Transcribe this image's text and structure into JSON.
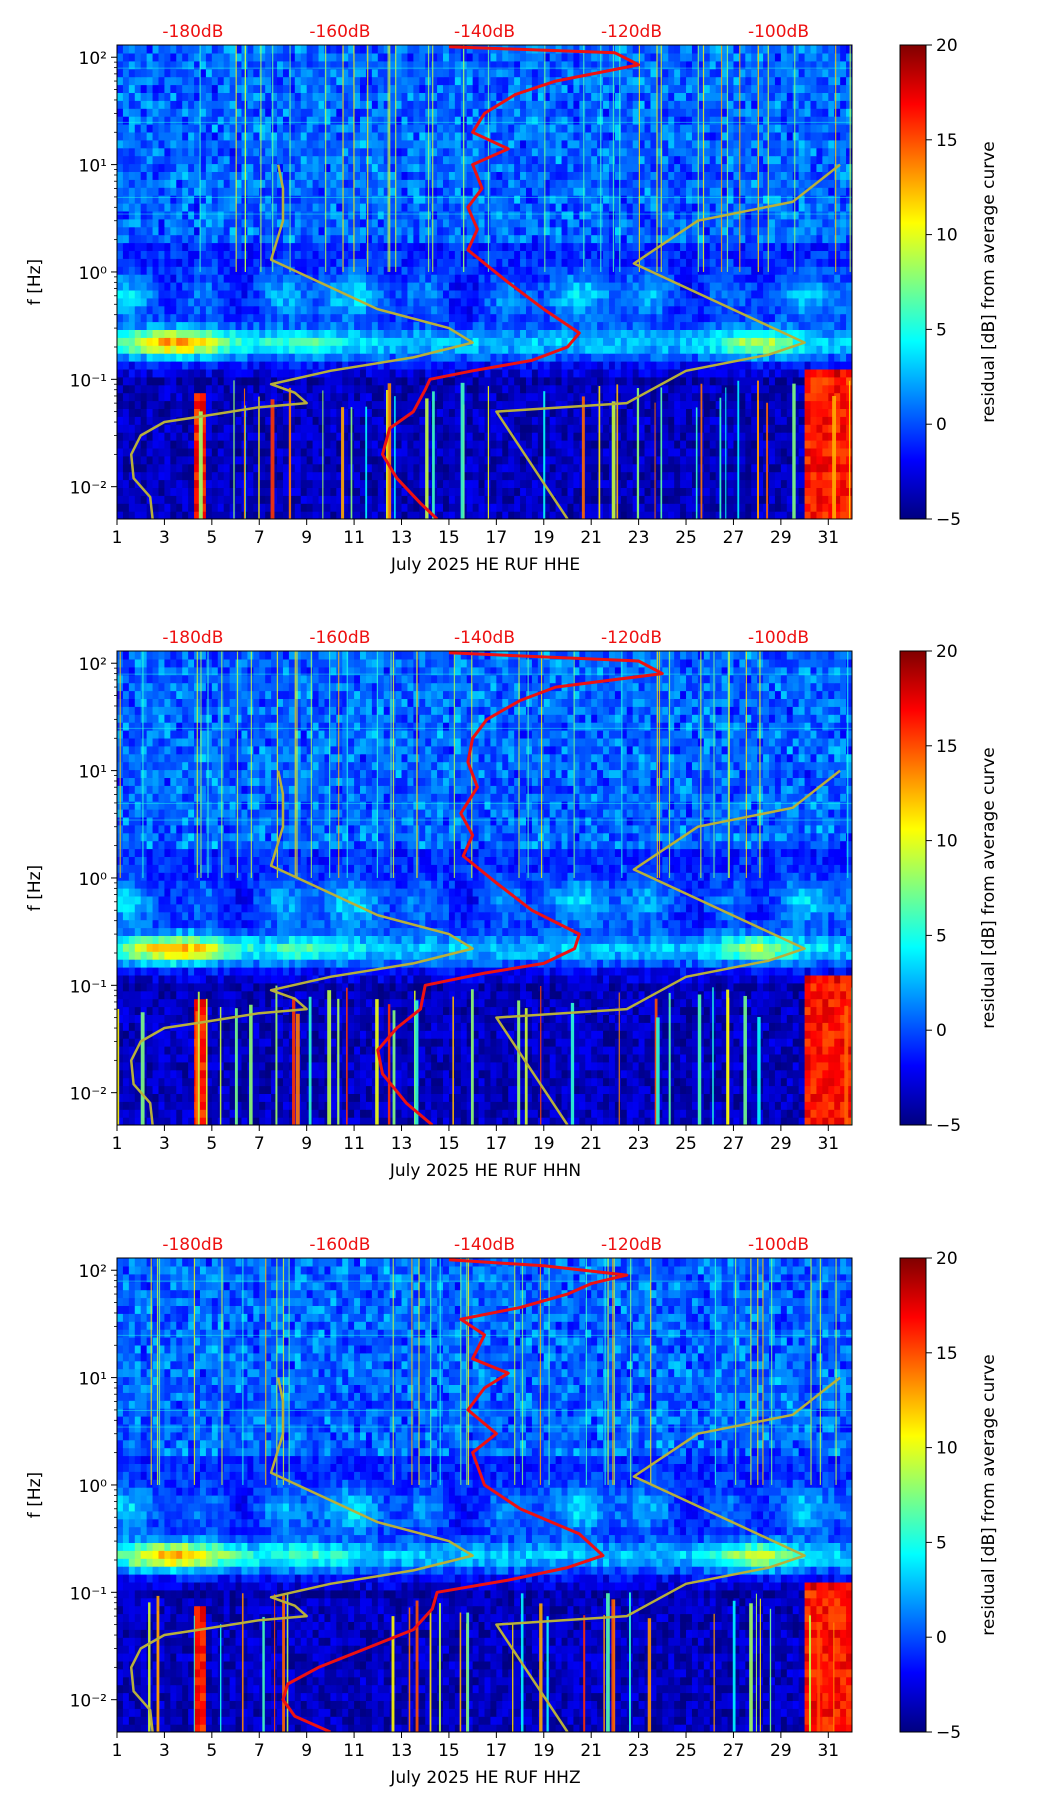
{
  "colors": {
    "noise_curve": "#ee1111",
    "model_curve": "#b8b03a",
    "top_label": "#ee1111",
    "axis": "#000000"
  },
  "colormap": [
    "#000080",
    "#0000ff",
    "#0080ff",
    "#00ffff",
    "#80ff80",
    "#ffff00",
    "#ff8000",
    "#ff0000",
    "#800000"
  ],
  "chart_data": [
    {
      "type": "heatmap",
      "title": "",
      "xlabel": "July 2025 HE RUF  HHE",
      "ylabel": "f [Hz]",
      "xlim": [
        1,
        32
      ],
      "ylim": [
        0.005,
        130
      ],
      "yscale": "log",
      "xticks": [
        1,
        3,
        5,
        7,
        9,
        11,
        13,
        15,
        17,
        19,
        21,
        23,
        25,
        27,
        29,
        31
      ],
      "yticks": [
        {
          "value": 0.01,
          "label": "10⁻²"
        },
        {
          "value": 0.1,
          "label": "10⁻¹"
        },
        {
          "value": 1,
          "label": "10⁰"
        },
        {
          "value": 10,
          "label": "10¹"
        },
        {
          "value": 100,
          "label": "10²"
        }
      ],
      "top_axis": {
        "labels": [
          "-180dB",
          "-160dB",
          "-140dB",
          "-120dB",
          "-100dB"
        ],
        "positions_day": [
          4.2,
          10.4,
          16.5,
          22.7,
          28.9
        ]
      },
      "colorbar": {
        "label": "residual [dB] from average curve",
        "min": -5,
        "max": 20,
        "ticks": [
          -5,
          0,
          5,
          10,
          15,
          20
        ]
      },
      "series": [
        {
          "name": "noise-model-curve",
          "points": [
            [
              2.5,
              0.005
            ],
            [
              2.4,
              0.008
            ],
            [
              1.7,
              0.012
            ],
            [
              1.6,
              0.02
            ],
            [
              2.0,
              0.03
            ],
            [
              3.0,
              0.04
            ],
            [
              4.5,
              0.045
            ],
            [
              7.0,
              0.055
            ],
            [
              9.0,
              0.06
            ],
            [
              8.5,
              0.075
            ],
            [
              7.5,
              0.09
            ],
            [
              10.0,
              0.12
            ],
            [
              13.5,
              0.16
            ],
            [
              16.0,
              0.22
            ],
            [
              15.0,
              0.3
            ],
            [
              12.0,
              0.45
            ],
            [
              7.5,
              1.3
            ],
            [
              8.0,
              3
            ],
            [
              8.0,
              6
            ],
            [
              7.8,
              10
            ]
          ]
        },
        {
          "name": "model-curve-right",
          "points": [
            [
              20.0,
              0.005
            ],
            [
              17.0,
              0.05
            ],
            [
              22.5,
              0.06
            ],
            [
              25.0,
              0.12
            ],
            [
              28.5,
              0.17
            ],
            [
              30.0,
              0.22
            ],
            [
              22.8,
              1.2
            ],
            [
              25.5,
              3
            ],
            [
              29.5,
              4.5
            ],
            [
              31.5,
              10
            ]
          ]
        },
        {
          "name": "mean-spectrum",
          "points": [
            [
              14.5,
              0.005
            ],
            [
              13.8,
              0.007
            ],
            [
              12.8,
              0.012
            ],
            [
              12.2,
              0.02
            ],
            [
              12.5,
              0.035
            ],
            [
              13.5,
              0.05
            ],
            [
              14.0,
              0.08
            ],
            [
              14.2,
              0.1
            ],
            [
              16.0,
              0.12
            ],
            [
              18.5,
              0.15
            ],
            [
              20.0,
              0.2
            ],
            [
              20.5,
              0.27
            ],
            [
              19.0,
              0.45
            ],
            [
              17.5,
              0.8
            ],
            [
              15.8,
              1.6
            ],
            [
              16.2,
              2.5
            ],
            [
              15.8,
              4
            ],
            [
              16.4,
              6
            ],
            [
              16.0,
              10
            ],
            [
              17.5,
              14
            ],
            [
              16.0,
              20
            ],
            [
              16.5,
              30
            ],
            [
              17.8,
              45
            ],
            [
              19.5,
              60
            ],
            [
              23.0,
              85
            ],
            [
              22.0,
              110
            ],
            [
              15.0,
              125
            ]
          ]
        }
      ]
    },
    {
      "type": "heatmap",
      "title": "",
      "xlabel": "July 2025 HE RUF  HHN",
      "ylabel": "f [Hz]",
      "xlim": [
        1,
        32
      ],
      "ylim": [
        0.005,
        130
      ],
      "yscale": "log",
      "xticks": [
        1,
        3,
        5,
        7,
        9,
        11,
        13,
        15,
        17,
        19,
        21,
        23,
        25,
        27,
        29,
        31
      ],
      "yticks": [
        {
          "value": 0.01,
          "label": "10⁻²"
        },
        {
          "value": 0.1,
          "label": "10⁻¹"
        },
        {
          "value": 1,
          "label": "10⁰"
        },
        {
          "value": 10,
          "label": "10¹"
        },
        {
          "value": 100,
          "label": "10²"
        }
      ],
      "top_axis": {
        "labels": [
          "-180dB",
          "-160dB",
          "-140dB",
          "-120dB",
          "-100dB"
        ],
        "positions_day": [
          4.2,
          10.4,
          16.5,
          22.7,
          28.9
        ]
      },
      "colorbar": {
        "label": "residual [dB] from average curve",
        "min": -5,
        "max": 20,
        "ticks": [
          -5,
          0,
          5,
          10,
          15,
          20
        ]
      },
      "series": [
        {
          "name": "noise-model-curve",
          "points": [
            [
              2.5,
              0.005
            ],
            [
              2.4,
              0.008
            ],
            [
              1.7,
              0.012
            ],
            [
              1.6,
              0.02
            ],
            [
              2.0,
              0.03
            ],
            [
              3.0,
              0.04
            ],
            [
              4.5,
              0.045
            ],
            [
              7.0,
              0.055
            ],
            [
              9.0,
              0.06
            ],
            [
              8.5,
              0.075
            ],
            [
              7.5,
              0.09
            ],
            [
              10.0,
              0.12
            ],
            [
              13.5,
              0.16
            ],
            [
              16.0,
              0.22
            ],
            [
              15.0,
              0.3
            ],
            [
              12.0,
              0.45
            ],
            [
              7.5,
              1.3
            ],
            [
              8.0,
              3
            ],
            [
              8.0,
              6
            ],
            [
              7.8,
              10
            ]
          ]
        },
        {
          "name": "model-curve-right",
          "points": [
            [
              20.0,
              0.005
            ],
            [
              17.0,
              0.05
            ],
            [
              22.5,
              0.06
            ],
            [
              25.0,
              0.12
            ],
            [
              28.5,
              0.17
            ],
            [
              30.0,
              0.22
            ],
            [
              22.8,
              1.2
            ],
            [
              25.5,
              3
            ],
            [
              29.5,
              4.5
            ],
            [
              31.5,
              10
            ]
          ]
        },
        {
          "name": "mean-spectrum",
          "points": [
            [
              14.3,
              0.005
            ],
            [
              13.2,
              0.008
            ],
            [
              12.2,
              0.015
            ],
            [
              12.0,
              0.025
            ],
            [
              12.8,
              0.04
            ],
            [
              13.8,
              0.06
            ],
            [
              14.0,
              0.1
            ],
            [
              16.5,
              0.13
            ],
            [
              19.0,
              0.16
            ],
            [
              20.3,
              0.22
            ],
            [
              20.5,
              0.3
            ],
            [
              18.5,
              0.5
            ],
            [
              17.0,
              0.9
            ],
            [
              15.6,
              1.6
            ],
            [
              16.0,
              2.5
            ],
            [
              15.5,
              4
            ],
            [
              16.2,
              7
            ],
            [
              15.8,
              12
            ],
            [
              16.0,
              20
            ],
            [
              16.6,
              30
            ],
            [
              18.0,
              45
            ],
            [
              19.5,
              60
            ],
            [
              24.0,
              80
            ],
            [
              23.0,
              105
            ],
            [
              15.0,
              125
            ]
          ]
        }
      ]
    },
    {
      "type": "heatmap",
      "title": "",
      "xlabel": "July 2025 HE RUF  HHZ",
      "ylabel": "f [Hz]",
      "xlim": [
        1,
        32
      ],
      "ylim": [
        0.005,
        130
      ],
      "yscale": "log",
      "xticks": [
        1,
        3,
        5,
        7,
        9,
        11,
        13,
        15,
        17,
        19,
        21,
        23,
        25,
        27,
        29,
        31
      ],
      "yticks": [
        {
          "value": 0.01,
          "label": "10⁻²"
        },
        {
          "value": 0.1,
          "label": "10⁻¹"
        },
        {
          "value": 1,
          "label": "10⁰"
        },
        {
          "value": 10,
          "label": "10¹"
        },
        {
          "value": 100,
          "label": "10²"
        }
      ],
      "top_axis": {
        "labels": [
          "-180dB",
          "-160dB",
          "-140dB",
          "-120dB",
          "-100dB"
        ],
        "positions_day": [
          4.2,
          10.4,
          16.5,
          22.7,
          28.9
        ]
      },
      "colorbar": {
        "label": "residual [dB] from average curve",
        "min": -5,
        "max": 20,
        "ticks": [
          -5,
          0,
          5,
          10,
          15,
          20
        ]
      },
      "series": [
        {
          "name": "noise-model-curve",
          "points": [
            [
              2.5,
              0.005
            ],
            [
              2.4,
              0.008
            ],
            [
              1.7,
              0.012
            ],
            [
              1.6,
              0.02
            ],
            [
              2.0,
              0.03
            ],
            [
              3.0,
              0.04
            ],
            [
              4.5,
              0.045
            ],
            [
              7.0,
              0.055
            ],
            [
              9.0,
              0.06
            ],
            [
              8.5,
              0.075
            ],
            [
              7.5,
              0.09
            ],
            [
              10.0,
              0.12
            ],
            [
              13.5,
              0.16
            ],
            [
              16.0,
              0.22
            ],
            [
              15.0,
              0.3
            ],
            [
              12.0,
              0.45
            ],
            [
              7.5,
              1.3
            ],
            [
              8.0,
              3
            ],
            [
              8.0,
              6
            ],
            [
              7.8,
              10
            ]
          ]
        },
        {
          "name": "model-curve-right",
          "points": [
            [
              20.0,
              0.005
            ],
            [
              17.0,
              0.05
            ],
            [
              22.5,
              0.06
            ],
            [
              25.0,
              0.12
            ],
            [
              28.5,
              0.17
            ],
            [
              30.0,
              0.22
            ],
            [
              22.8,
              1.2
            ],
            [
              25.5,
              3
            ],
            [
              29.5,
              4.5
            ],
            [
              31.5,
              10
            ]
          ]
        },
        {
          "name": "mean-spectrum",
          "points": [
            [
              10.0,
              0.005
            ],
            [
              8.5,
              0.007
            ],
            [
              8.0,
              0.01
            ],
            [
              8.2,
              0.014
            ],
            [
              9.5,
              0.02
            ],
            [
              11.5,
              0.03
            ],
            [
              13.5,
              0.045
            ],
            [
              14.3,
              0.07
            ],
            [
              14.5,
              0.1
            ],
            [
              17.5,
              0.13
            ],
            [
              20.0,
              0.17
            ],
            [
              21.5,
              0.22
            ],
            [
              20.5,
              0.35
            ],
            [
              18.0,
              0.6
            ],
            [
              16.5,
              1.0
            ],
            [
              16.0,
              2
            ],
            [
              17.0,
              3
            ],
            [
              15.8,
              5
            ],
            [
              16.5,
              8
            ],
            [
              17.5,
              11
            ],
            [
              16.0,
              15
            ],
            [
              16.5,
              25
            ],
            [
              15.5,
              35
            ],
            [
              18.0,
              45
            ],
            [
              20.0,
              60
            ],
            [
              21.0,
              75
            ],
            [
              22.5,
              90
            ],
            [
              19.0,
              110
            ],
            [
              15.0,
              125
            ]
          ]
        }
      ]
    }
  ]
}
